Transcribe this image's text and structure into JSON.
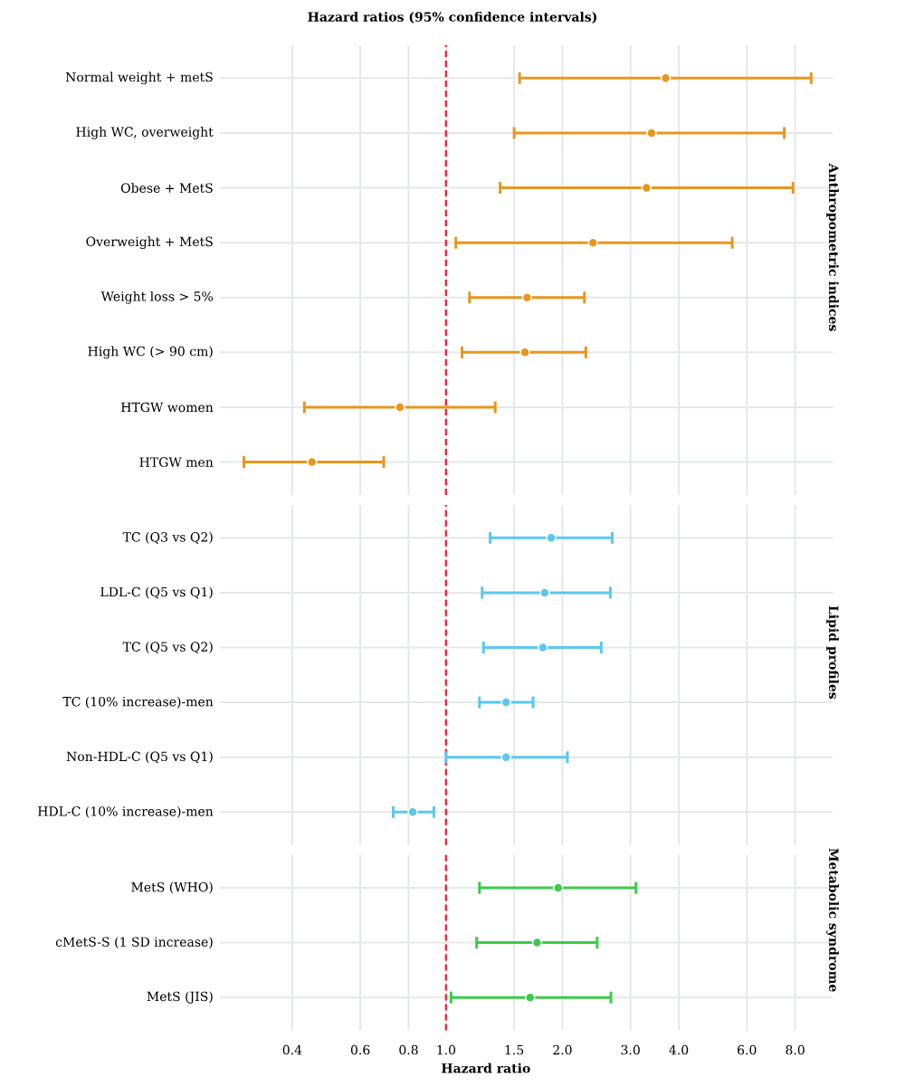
{
  "chart_data": [
    {
      "type": "scatter",
      "title": "Hazard ratios (95% confidence intervals)",
      "ylabel": "Anthropometric indices",
      "orientation": "horizontal",
      "log": "x",
      "grid": true,
      "marker": "circle",
      "tick_labels": "y",
      "categories": [
        "Normal weight + metS",
        "High WC, overweight",
        "Obese + MetS",
        "Overweight + MetS",
        "Weight loss > 5%",
        "High WC (> 90 cm)",
        "HTGW women",
        "HTGW men"
      ],
      "series": [
        {
          "color": "#E8961E",
          "values": [
            3.7,
            3.4,
            3.3,
            2.4,
            1.62,
            1.6,
            0.76,
            0.45
          ],
          "errors": [
            [
              1.55,
              8.8
            ],
            [
              1.5,
              7.5
            ],
            [
              1.38,
              7.9
            ],
            [
              1.06,
              5.5
            ],
            [
              1.15,
              2.28
            ],
            [
              1.1,
              2.3
            ],
            [
              0.43,
              1.34
            ],
            [
              0.3,
              0.69
            ]
          ]
        }
      ],
      "xlim": [
        0.26,
        10
      ],
      "xticks": [
        0.4,
        0.6,
        0.8,
        1,
        1.5,
        2,
        3,
        4,
        6,
        8
      ],
      "ref_lines": [
        {
          "axis": "x",
          "value": 1,
          "color": "#F0283C",
          "line_style": "dashed"
        }
      ]
    },
    {
      "type": "scatter",
      "ylabel": "Lipid profiles",
      "orientation": "horizontal",
      "log": "x",
      "grid": true,
      "marker": "circle",
      "tick_labels": "y",
      "categories": [
        "TC (Q3 vs Q2)",
        "LDL-C (Q5 vs Q1)",
        "TC (Q5 vs Q2)",
        "TC (10% increase)-men",
        "Non-HDL-C (Q5 vs Q1)",
        "HDL-C (10% increase)-men"
      ],
      "series": [
        {
          "color": "#5BC8EE",
          "values": [
            1.87,
            1.8,
            1.78,
            1.43,
            1.43,
            0.82
          ],
          "errors": [
            [
              1.3,
              2.69
            ],
            [
              1.24,
              2.66
            ],
            [
              1.25,
              2.52
            ],
            [
              1.22,
              1.68
            ],
            [
              1.0,
              2.06
            ],
            [
              0.73,
              0.93
            ]
          ]
        }
      ],
      "xlim": [
        0.26,
        10
      ],
      "xticks": [
        0.4,
        0.6,
        0.8,
        1,
        1.5,
        2,
        3,
        4,
        6,
        8
      ],
      "ref_lines": [
        {
          "axis": "x",
          "value": 1,
          "color": "#F0283C",
          "line_style": "dashed"
        }
      ]
    },
    {
      "type": "scatter",
      "ylabel": "Metabolic syndrome",
      "xlabel": "Hazard ratio",
      "orientation": "horizontal",
      "log": "x",
      "grid": true,
      "marker": "circle",
      "categories": [
        "MetS (WHO)",
        "cMetS-S (1 SD increase)",
        "MetS (JIS)"
      ],
      "series": [
        {
          "color": "#3CCB4B",
          "values": [
            1.95,
            1.72,
            1.65
          ],
          "errors": [
            [
              1.22,
              3.1
            ],
            [
              1.2,
              2.46
            ],
            [
              1.03,
              2.67
            ]
          ]
        }
      ],
      "xlim": [
        0.26,
        10
      ],
      "xticks": [
        0.4,
        0.6,
        0.8,
        {
          "value": 1,
          "label": "1.0"
        },
        1.5,
        {
          "value": 2,
          "label": "2.0"
        },
        {
          "value": 3,
          "label": "3.0"
        },
        {
          "value": 4,
          "label": "4.0"
        },
        {
          "value": 6,
          "label": "6.0"
        },
        {
          "value": 8,
          "label": "8.0"
        }
      ],
      "ref_lines": [
        {
          "axis": "x",
          "value": 1,
          "color": "#F0283C",
          "line_style": "dashed"
        }
      ]
    }
  ]
}
